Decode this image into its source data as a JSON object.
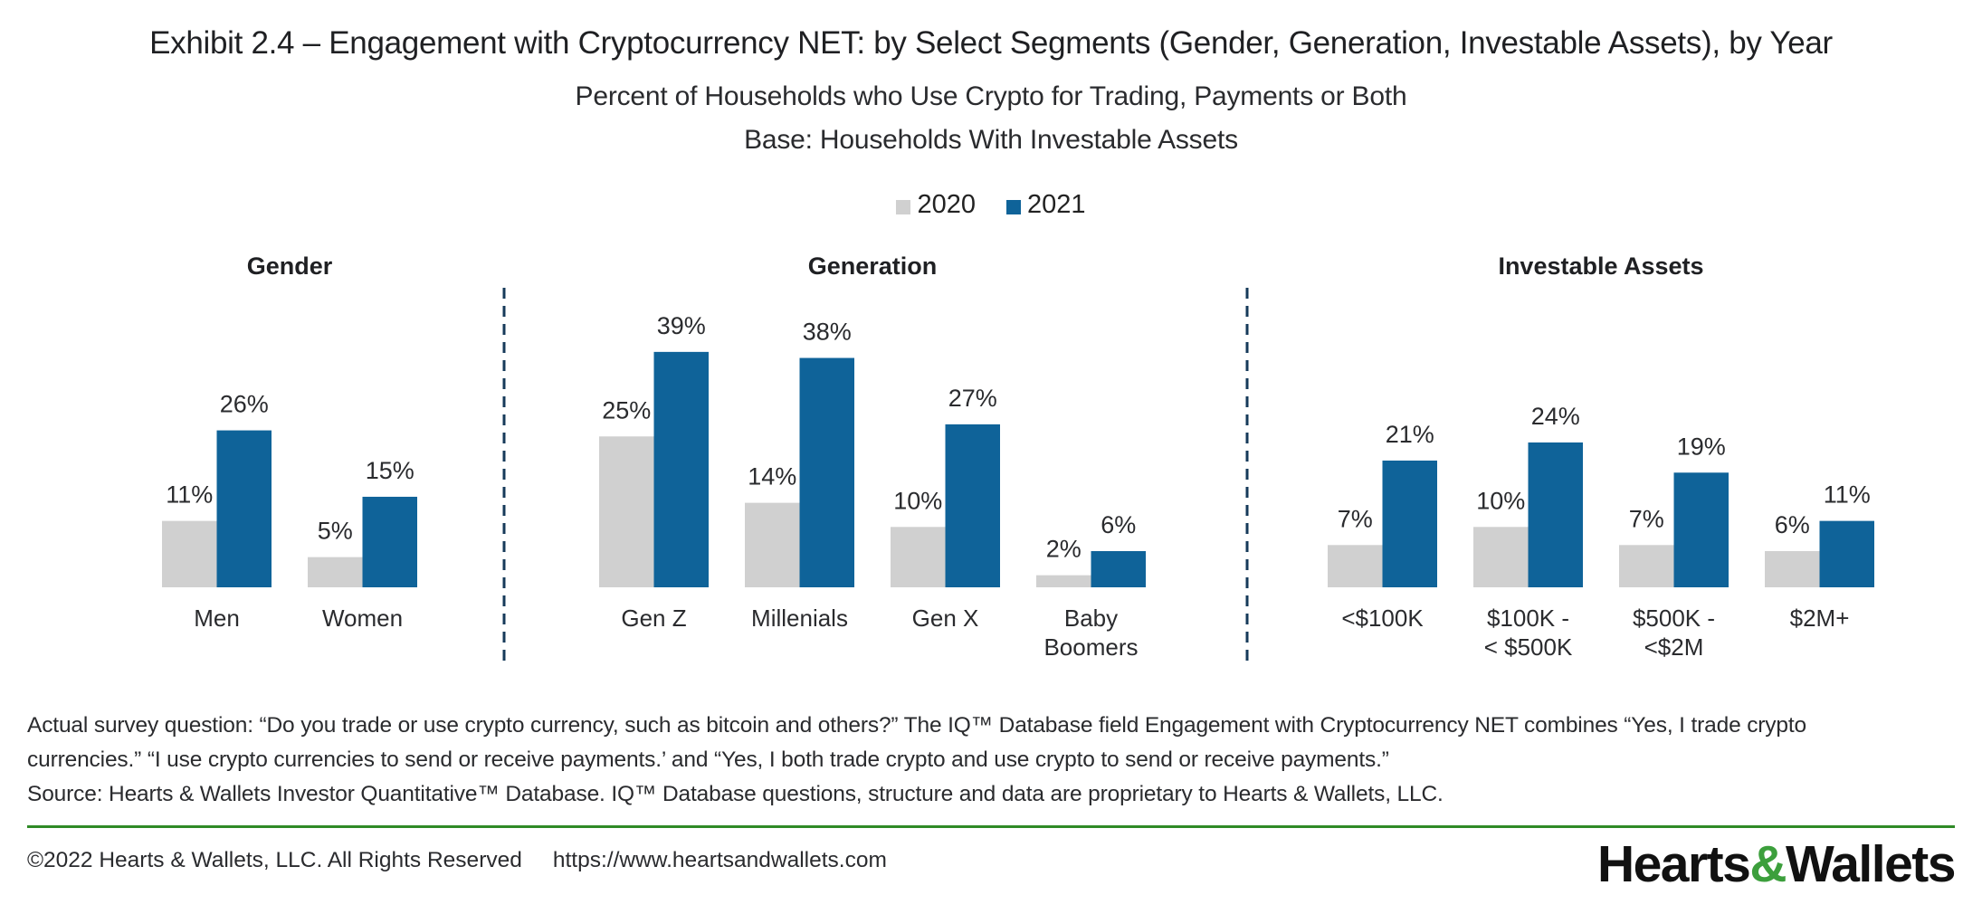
{
  "title": "Exhibit 2.4 – Engagement with Cryptocurrency NET: by Select Segments (Gender, Generation, Investable Assets), by Year",
  "subtitle_lines": [
    "Percent of Households who Use Crypto for Trading, Payments or Both",
    "Base: Households With Investable Assets"
  ],
  "legend": [
    {
      "label": "2020",
      "color": "#d0d0d0"
    },
    {
      "label": "2021",
      "color": "#0f6399"
    }
  ],
  "chart_data": {
    "type": "bar",
    "title": "Engagement with Cryptocurrency NET: by Select Segments (Gender, Generation, Investable Assets), by Year",
    "ylabel": "Percent of Households",
    "ylim": [
      0,
      40
    ],
    "grid": false,
    "legend_position": "top-center",
    "series_names": [
      "2020",
      "2021"
    ],
    "series_colors": [
      "#d0d0d0",
      "#0f6399"
    ],
    "panels": [
      {
        "name": "Gender",
        "categories": [
          "Men",
          "Women"
        ],
        "series": [
          {
            "name": "2020",
            "values": [
              11,
              5
            ]
          },
          {
            "name": "2021",
            "values": [
              26,
              15
            ]
          }
        ]
      },
      {
        "name": "Generation",
        "categories": [
          "Gen Z",
          "Millenials",
          "Gen X",
          "Baby Boomers"
        ],
        "category_lines": [
          [
            "Gen Z"
          ],
          [
            "Millenials"
          ],
          [
            "Gen X"
          ],
          [
            "Baby",
            "Boomers"
          ]
        ],
        "series": [
          {
            "name": "2020",
            "values": [
              25,
              14,
              10,
              2
            ]
          },
          {
            "name": "2021",
            "values": [
              39,
              38,
              27,
              6
            ]
          }
        ]
      },
      {
        "name": "Investable Assets",
        "categories": [
          "<$100K",
          "$100K - < $500K",
          "$500K - <$2M",
          "$2M+"
        ],
        "category_lines": [
          [
            "<$100K"
          ],
          [
            "$100K -",
            "< $500K"
          ],
          [
            "$500K -",
            "<$2M"
          ],
          [
            "$2M+"
          ]
        ],
        "series": [
          {
            "name": "2020",
            "values": [
              7,
              10,
              7,
              6
            ]
          },
          {
            "name": "2021",
            "values": [
              21,
              24,
              19,
              11
            ]
          }
        ]
      }
    ],
    "value_format": "{v}%"
  },
  "footnotes": [
    "Actual survey question: “Do you trade or use crypto currency, such as bitcoin and others?” The IQ™ Database field Engagement with Cryptocurrency NET combines “Yes, I trade crypto",
    "currencies.” “I use crypto currencies to send or receive payments.’ and “Yes, I both trade crypto and use crypto to send or receive payments.”",
    "Source: Hearts & Wallets Investor Quantitative™ Database. IQ™ Database questions, structure and data are proprietary to Hearts & Wallets, LLC."
  ],
  "footer": {
    "copyright": "©2022 Hearts & Wallets, LLC. All Rights Reserved",
    "url": "https://www.heartsandwallets.com",
    "logo_part1": "Hearts",
    "logo_amp": "&",
    "logo_part2": "Wallets",
    "rule_color": "#2f8a26",
    "logo_accent_color": "#3c9f3c"
  },
  "divider_color": "#163a5a"
}
